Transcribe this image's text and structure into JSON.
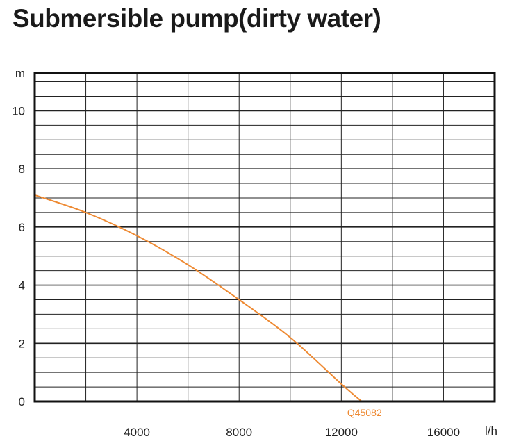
{
  "title": "Submersible pump(dirty water)",
  "chart_data": {
    "type": "line",
    "title": "Submersible pump(dirty water)",
    "xlabel": "",
    "ylabel": "",
    "x_unit": "l/h",
    "y_unit": "m",
    "xlim": [
      0,
      18000
    ],
    "ylim": [
      0,
      11.3
    ],
    "x_ticks": [
      4000,
      8000,
      12000,
      16000
    ],
    "y_ticks": [
      0,
      2,
      4,
      6,
      8,
      10
    ],
    "grid": true,
    "series": [
      {
        "name": "Q45082",
        "color": "#ee8a33",
        "x": [
          0,
          2000,
          4000,
          6000,
          8000,
          10000,
          12000,
          12800
        ],
        "y": [
          7.1,
          6.5,
          5.7,
          4.7,
          3.5,
          2.2,
          0.6,
          0
        ]
      }
    ]
  }
}
